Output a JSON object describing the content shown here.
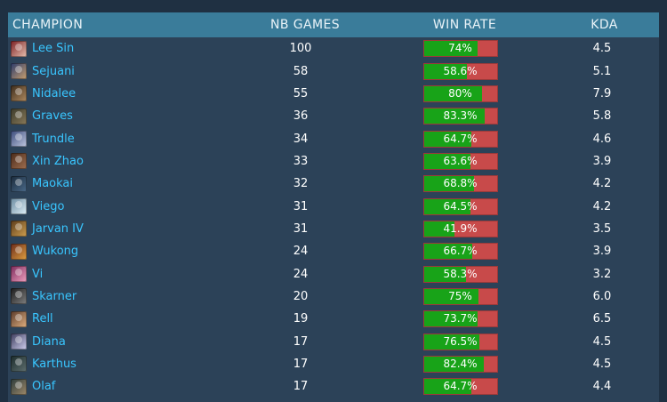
{
  "columns": {
    "champion": "CHAMPION",
    "games": "NB GAMES",
    "winrate": "WIN RATE",
    "kda": "KDA"
  },
  "colors": {
    "header": "#3a7c9a",
    "name": "#39c6ff",
    "win": "#18a318",
    "loss": "#c84a4a",
    "background": "#2c4258"
  },
  "rows": [
    {
      "champion": "Lee Sin",
      "games": "100",
      "winrate_label": "74%",
      "winrate": 74,
      "kda": "4.5",
      "icon": "lee-sin-portrait-icon",
      "c1": "#7a1e22",
      "c2": "#e8c0b0"
    },
    {
      "champion": "Sejuani",
      "games": "58",
      "winrate_label": "58.6%",
      "winrate": 58.6,
      "kda": "5.1",
      "icon": "sejuani-portrait-icon",
      "c1": "#2a3a6a",
      "c2": "#c9a070"
    },
    {
      "champion": "Nidalee",
      "games": "55",
      "winrate_label": "80%",
      "winrate": 80,
      "kda": "7.9",
      "icon": "nidalee-portrait-icon",
      "c1": "#3a2a1a",
      "c2": "#b08a60"
    },
    {
      "champion": "Graves",
      "games": "36",
      "winrate_label": "83.3%",
      "winrate": 83.3,
      "kda": "5.8",
      "icon": "graves-portrait-icon",
      "c1": "#3a3a2a",
      "c2": "#8a7a5a"
    },
    {
      "champion": "Trundle",
      "games": "34",
      "winrate_label": "64.7%",
      "winrate": 64.7,
      "kda": "4.6",
      "icon": "trundle-portrait-icon",
      "c1": "#3a4a7a",
      "c2": "#c0c8e0"
    },
    {
      "champion": "Xin Zhao",
      "games": "33",
      "winrate_label": "63.6%",
      "winrate": 63.6,
      "kda": "3.9",
      "icon": "xin-zhao-portrait-icon",
      "c1": "#4a2a1a",
      "c2": "#a07050"
    },
    {
      "champion": "Maokai",
      "games": "32",
      "winrate_label": "68.8%",
      "winrate": 68.8,
      "kda": "4.2",
      "icon": "maokai-portrait-icon",
      "c1": "#1a2a3a",
      "c2": "#4a6a8a"
    },
    {
      "champion": "Viego",
      "games": "31",
      "winrate_label": "64.5%",
      "winrate": 64.5,
      "kda": "4.2",
      "icon": "viego-portrait-icon",
      "c1": "#6a8aa0",
      "c2": "#e0f0f8"
    },
    {
      "champion": "Jarvan IV",
      "games": "31",
      "winrate_label": "41.9%",
      "winrate": 41.9,
      "kda": "3.5",
      "icon": "jarvan-iv-portrait-icon",
      "c1": "#5a3a1a",
      "c2": "#d0a050"
    },
    {
      "champion": "Wukong",
      "games": "24",
      "winrate_label": "66.7%",
      "winrate": 66.7,
      "kda": "3.9",
      "icon": "wukong-portrait-icon",
      "c1": "#6a2a1a",
      "c2": "#e0a040"
    },
    {
      "champion": "Vi",
      "games": "24",
      "winrate_label": "58.3%",
      "winrate": 58.3,
      "kda": "3.2",
      "icon": "vi-portrait-icon",
      "c1": "#7a2a5a",
      "c2": "#f0a0c0"
    },
    {
      "champion": "Skarner",
      "games": "20",
      "winrate_label": "75%",
      "winrate": 75,
      "kda": "6.0",
      "icon": "skarner-portrait-icon",
      "c1": "#1a1a1a",
      "c2": "#808080"
    },
    {
      "champion": "Rell",
      "games": "19",
      "winrate_label": "73.7%",
      "winrate": 73.7,
      "kda": "6.5",
      "icon": "rell-portrait-icon",
      "c1": "#5a3a2a",
      "c2": "#e0b080"
    },
    {
      "champion": "Diana",
      "games": "17",
      "winrate_label": "76.5%",
      "winrate": 76.5,
      "kda": "4.5",
      "icon": "diana-portrait-icon",
      "c1": "#3a3a5a",
      "c2": "#d0d0f0"
    },
    {
      "champion": "Karthus",
      "games": "17",
      "winrate_label": "82.4%",
      "winrate": 82.4,
      "kda": "4.5",
      "icon": "karthus-portrait-icon",
      "c1": "#1a2a2a",
      "c2": "#607070"
    },
    {
      "champion": "Olaf",
      "games": "17",
      "winrate_label": "64.7%",
      "winrate": 64.7,
      "kda": "4.4",
      "icon": "olaf-portrait-icon",
      "c1": "#2a3a3a",
      "c2": "#a08a6a"
    }
  ]
}
